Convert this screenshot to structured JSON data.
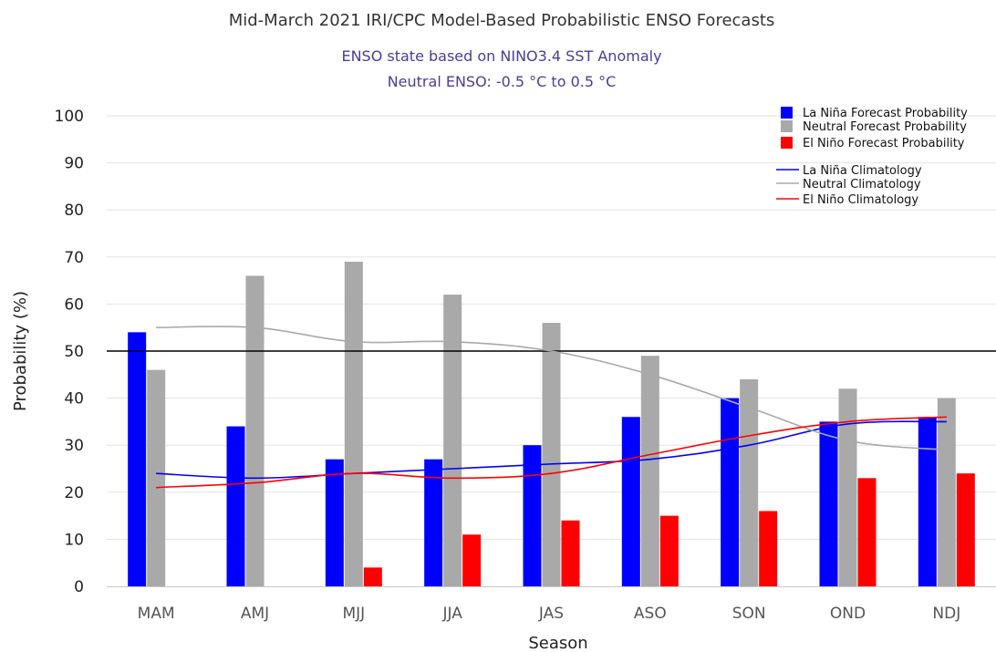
{
  "chart_data": {
    "type": "bar",
    "title": "Mid-March 2021 IRI/CPC Model-Based Probabilistic ENSO Forecasts",
    "subtitle_lines": [
      "ENSO state based on NINO3.4 SST Anomaly",
      "Neutral ENSO: -0.5 °C to 0.5 °C"
    ],
    "xlabel": "Season",
    "ylabel": "Probability (%)",
    "ylim": [
      0,
      100
    ],
    "yticks": [
      0,
      10,
      20,
      30,
      40,
      50,
      60,
      70,
      80,
      90,
      100
    ],
    "reference_line": 50,
    "grid": true,
    "legend_position": "top-right",
    "categories": [
      "MAM",
      "AMJ",
      "MJJ",
      "JJA",
      "JAS",
      "ASO",
      "SON",
      "OND",
      "NDJ"
    ],
    "series": [
      {
        "name": "La Niña Forecast Probability",
        "color": "#0000ff",
        "values": [
          54,
          34,
          27,
          27,
          30,
          36,
          40,
          35,
          36
        ]
      },
      {
        "name": "Neutral Forecast Probability",
        "color": "#a9a9a9",
        "values": [
          46,
          66,
          69,
          62,
          56,
          49,
          44,
          42,
          40
        ]
      },
      {
        "name": "El Niño Forecast Probability",
        "color": "#ff0000",
        "values": [
          0,
          0,
          4,
          11,
          14,
          15,
          16,
          23,
          24
        ]
      }
    ],
    "lines": [
      {
        "name": "La Niña Climatology",
        "color": "#0000ff",
        "values": [
          24,
          23,
          24,
          25,
          26,
          27,
          30,
          34.5,
          35
        ]
      },
      {
        "name": "Neutral Climatology",
        "color": "#a9a9a9",
        "values": [
          55,
          55,
          52,
          52,
          50,
          45,
          38,
          31,
          29
        ]
      },
      {
        "name": "El Niño Climatology",
        "color": "#ff0000",
        "values": [
          21,
          22,
          24,
          23,
          24,
          28,
          32,
          35,
          36
        ]
      }
    ]
  }
}
